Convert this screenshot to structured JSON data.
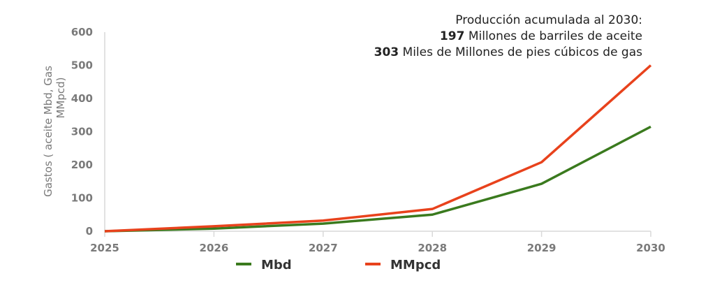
{
  "chart_data": {
    "type": "line",
    "title": "",
    "xlabel": "",
    "ylabel": "Gastos ( aceite Mbd, Gas MMpcd)",
    "ylabel_lines": [
      "Gastos ( aceite Mbd, Gas",
      "MMpcd)"
    ],
    "x": [
      2025,
      2026,
      2027,
      2028,
      2029,
      2030
    ],
    "x_tick_labels": [
      "2025",
      "2026",
      "2027",
      "2028",
      "2029",
      "2030"
    ],
    "ylim": [
      0,
      600
    ],
    "y_ticks": [
      0,
      100,
      200,
      300,
      400,
      500,
      600
    ],
    "y_tick_labels": [
      "0",
      "100",
      "200",
      "300",
      "400",
      "500",
      "600"
    ],
    "grid": false,
    "legend_position": "bottom",
    "series": [
      {
        "name": "Mbd",
        "color": "#3a7a1e",
        "values": [
          0,
          8,
          23,
          50,
          143,
          315
        ]
      },
      {
        "name": "MMpcd",
        "color": "#e8421c",
        "values": [
          0,
          15,
          32,
          67,
          208,
          500
        ]
      }
    ],
    "annotation": {
      "line1": "Producción acumulada al 2030:",
      "line2_value": "197",
      "line2_text": " Millones de barriles de aceite",
      "line3_value": "303",
      "line3_text": " Miles de Millones de pies cúbicos de gas"
    }
  }
}
